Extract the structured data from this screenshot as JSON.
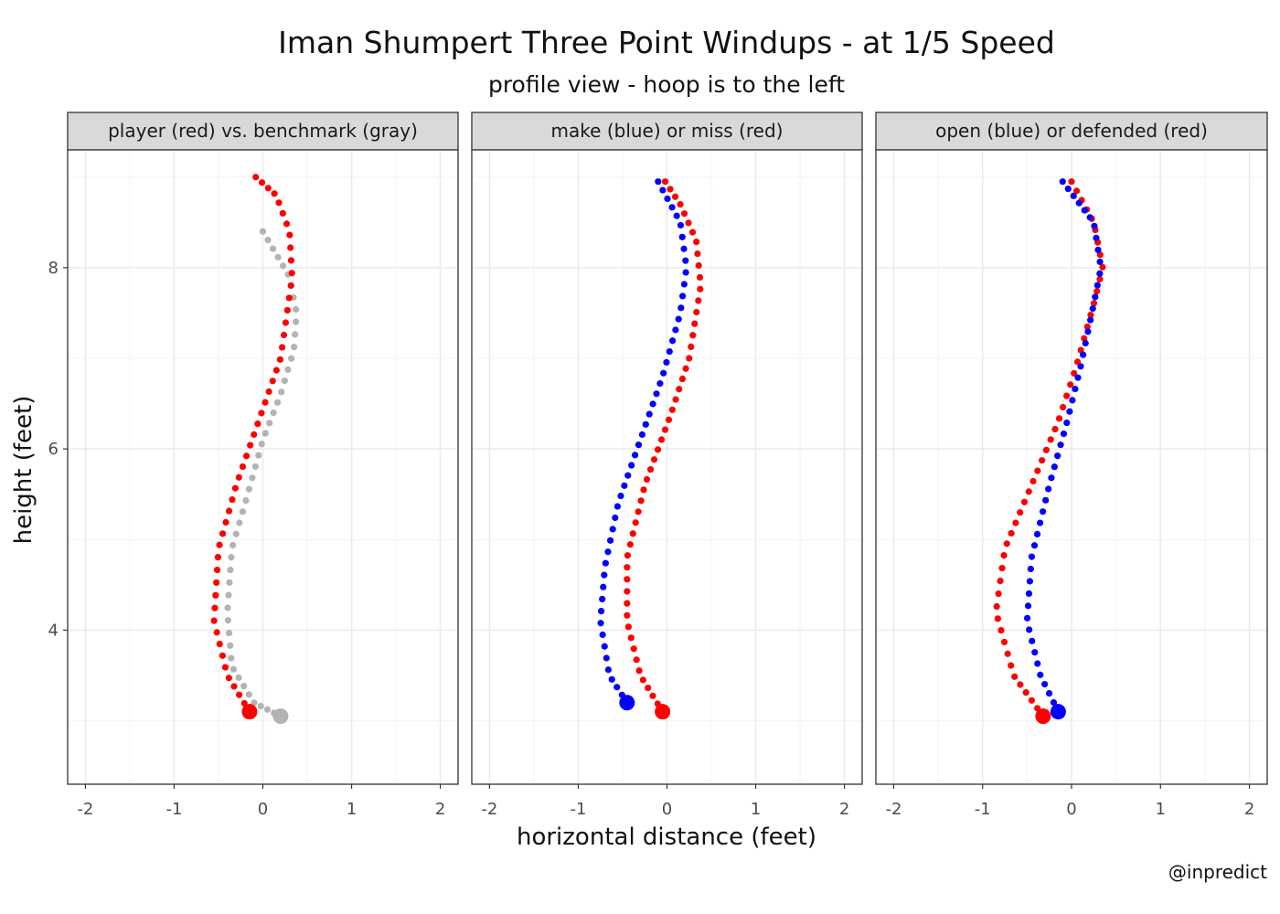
{
  "chart_data": {
    "type": "scatter",
    "title": "Iman Shumpert Three Point Windups - at 1/5 Speed",
    "subtitle": "profile view - hoop is to the left",
    "xlabel": "horizontal distance (feet)",
    "ylabel": "height (feet)",
    "caption": "@inpredict",
    "xlim": [
      -2.2,
      2.2
    ],
    "ylim": [
      2.3,
      9.3
    ],
    "x_ticks": [
      -2,
      -1,
      0,
      1,
      2
    ],
    "x_tick_labels": [
      "-2",
      "-1",
      "0",
      "1",
      "2"
    ],
    "y_ticks": [
      4,
      6,
      8
    ],
    "y_tick_labels": [
      "4",
      "6",
      "8"
    ],
    "colors": {
      "red": "#ff0000",
      "gray": "#b3b3b3",
      "blue": "#0000ff",
      "grid": "#ebebeb",
      "strip_bg": "#d9d9d9",
      "border": "#333333"
    },
    "panels": [
      {
        "label": "player (red) vs. benchmark (gray)",
        "series": [
          {
            "name": "benchmark",
            "color": "gray",
            "start": [
              0.2,
              3.05
            ],
            "anchors": [
              [
                0.2,
                3.05
              ],
              [
                -0.1,
                3.2
              ],
              [
                -0.35,
                3.6
              ],
              [
                -0.4,
                4.2
              ],
              [
                -0.35,
                4.9
              ],
              [
                -0.2,
                5.4
              ],
              [
                0.0,
                6.1
              ],
              [
                0.2,
                6.6
              ],
              [
                0.35,
                7.1
              ],
              [
                0.38,
                7.5
              ],
              [
                0.3,
                7.9
              ],
              [
                0.0,
                8.4
              ]
            ],
            "n_points": 48
          },
          {
            "name": "player",
            "color": "red",
            "start": [
              -0.15,
              3.1
            ],
            "anchors": [
              [
                -0.15,
                3.1
              ],
              [
                -0.4,
                3.5
              ],
              [
                -0.55,
                4.1
              ],
              [
                -0.5,
                4.9
              ],
              [
                -0.3,
                5.6
              ],
              [
                -0.05,
                6.3
              ],
              [
                0.2,
                7.0
              ],
              [
                0.33,
                7.9
              ],
              [
                0.3,
                8.4
              ],
              [
                0.15,
                8.8
              ],
              [
                -0.08,
                9.0
              ]
            ],
            "n_points": 50
          }
        ]
      },
      {
        "label": "make (blue) or miss (red)",
        "series": [
          {
            "name": "miss",
            "color": "red",
            "start": [
              -0.05,
              3.1
            ],
            "anchors": [
              [
                -0.05,
                3.1
              ],
              [
                -0.3,
                3.5
              ],
              [
                -0.45,
                4.1
              ],
              [
                -0.45,
                4.8
              ],
              [
                -0.25,
                5.6
              ],
              [
                0.05,
                6.4
              ],
              [
                0.25,
                7.0
              ],
              [
                0.38,
                7.8
              ],
              [
                0.33,
                8.3
              ],
              [
                0.15,
                8.7
              ],
              [
                -0.02,
                8.95
              ]
            ],
            "n_points": 52
          },
          {
            "name": "make",
            "color": "blue",
            "start": [
              -0.45,
              3.2
            ],
            "anchors": [
              [
                -0.45,
                3.2
              ],
              [
                -0.65,
                3.5
              ],
              [
                -0.75,
                4.1
              ],
              [
                -0.7,
                4.7
              ],
              [
                -0.55,
                5.4
              ],
              [
                -0.3,
                6.1
              ],
              [
                -0.05,
                6.8
              ],
              [
                0.15,
                7.5
              ],
              [
                0.22,
                8.0
              ],
              [
                0.15,
                8.5
              ],
              [
                -0.1,
                8.95
              ]
            ],
            "n_points": 50
          }
        ]
      },
      {
        "label": "open (blue) or defended (red)",
        "series": [
          {
            "name": "defended",
            "color": "red",
            "start": [
              -0.32,
              3.05
            ],
            "anchors": [
              [
                -0.32,
                3.05
              ],
              [
                -0.65,
                3.5
              ],
              [
                -0.85,
                4.2
              ],
              [
                -0.75,
                4.9
              ],
              [
                -0.45,
                5.6
              ],
              [
                -0.15,
                6.3
              ],
              [
                0.05,
                6.9
              ],
              [
                0.25,
                7.6
              ],
              [
                0.35,
                8.0
              ],
              [
                0.25,
                8.5
              ],
              [
                0.0,
                8.95
              ]
            ],
            "n_points": 50
          },
          {
            "name": "open",
            "color": "blue",
            "start": [
              -0.15,
              3.1
            ],
            "anchors": [
              [
                -0.15,
                3.1
              ],
              [
                -0.35,
                3.5
              ],
              [
                -0.5,
                4.1
              ],
              [
                -0.45,
                4.8
              ],
              [
                -0.25,
                5.6
              ],
              [
                -0.05,
                6.3
              ],
              [
                0.1,
                6.9
              ],
              [
                0.25,
                7.6
              ],
              [
                0.33,
                8.0
              ],
              [
                0.25,
                8.5
              ],
              [
                -0.1,
                8.95
              ]
            ],
            "n_points": 50
          }
        ]
      }
    ]
  }
}
